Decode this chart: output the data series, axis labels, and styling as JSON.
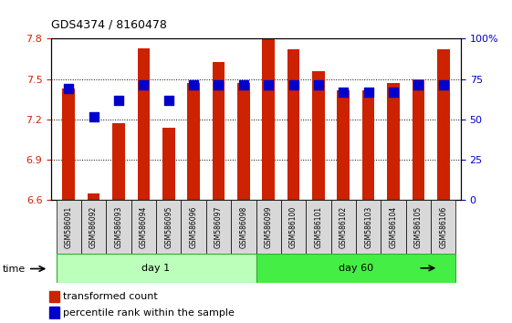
{
  "title": "GDS4374 / 8160478",
  "samples": [
    "GSM586091",
    "GSM586092",
    "GSM586093",
    "GSM586094",
    "GSM586095",
    "GSM586096",
    "GSM586097",
    "GSM586098",
    "GSM586099",
    "GSM586100",
    "GSM586101",
    "GSM586102",
    "GSM586103",
    "GSM586104",
    "GSM586105",
    "GSM586106"
  ],
  "red_values": [
    7.43,
    6.65,
    7.17,
    7.73,
    7.14,
    7.47,
    7.63,
    7.47,
    7.8,
    7.72,
    7.56,
    7.42,
    7.42,
    7.47,
    7.5,
    7.72
  ],
  "blue_values": [
    7.43,
    7.22,
    7.34,
    7.46,
    7.34,
    7.46,
    7.46,
    7.46,
    7.46,
    7.46,
    7.46,
    7.4,
    7.4,
    7.4,
    7.46,
    7.46
  ],
  "ymin": 6.6,
  "ymax": 7.8,
  "yticks": [
    6.6,
    6.9,
    7.2,
    7.5,
    7.8
  ],
  "right_yticks": [
    0,
    25,
    50,
    75,
    100
  ],
  "bar_color": "#CC2200",
  "dot_color": "#0000CC",
  "day1_samples": 8,
  "day60_samples": 8,
  "day1_label": "day 1",
  "day60_label": "day 60",
  "day1_color": "#BBFFBB",
  "day60_color": "#44EE44",
  "bar_width": 0.5,
  "dot_size": 55
}
